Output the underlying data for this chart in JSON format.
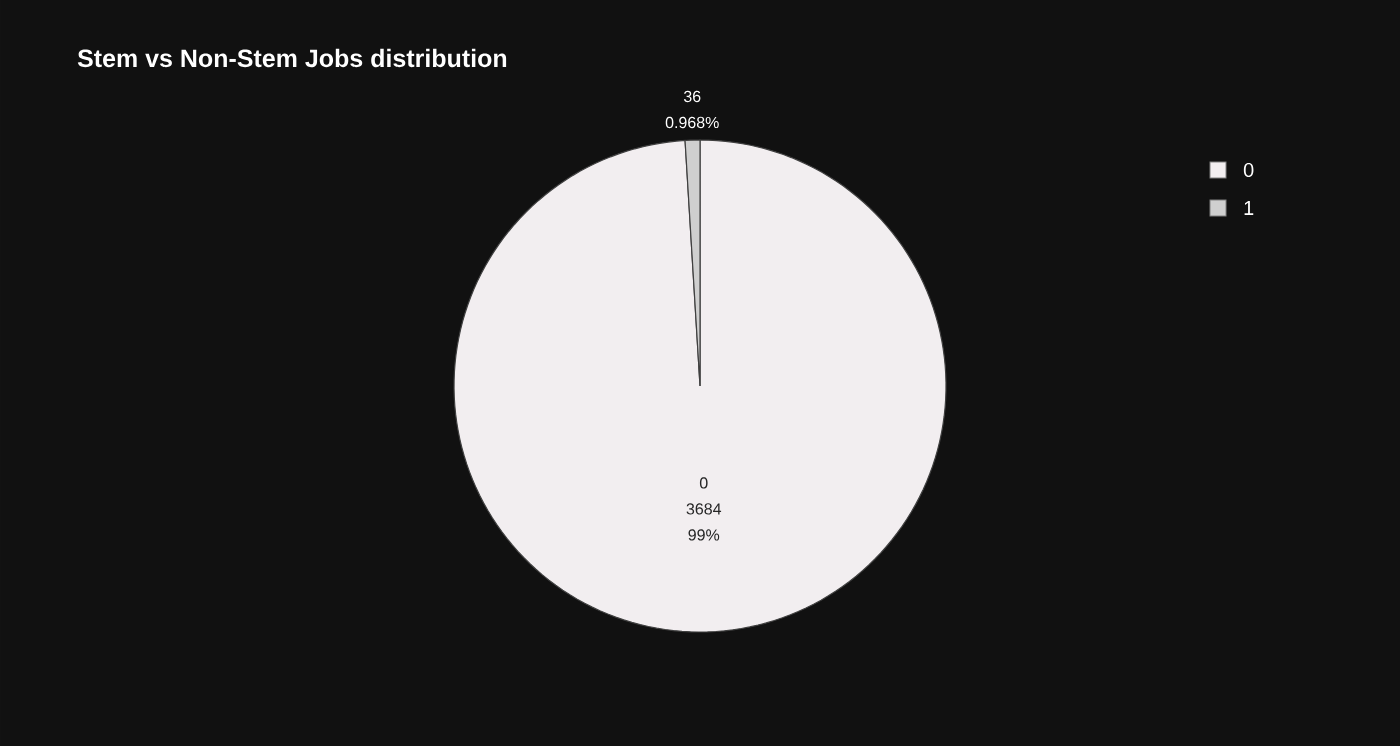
{
  "chart_data": {
    "type": "pie",
    "title": "Stem vs Non-Stem Jobs distribution",
    "categories": [
      "0",
      "1"
    ],
    "values": [
      3684,
      36
    ],
    "colors": [
      "#f2eef0",
      "#cfcfcf"
    ],
    "annotations": [
      "99%",
      "0.968%"
    ],
    "data_labels": true,
    "legend": "top right"
  }
}
